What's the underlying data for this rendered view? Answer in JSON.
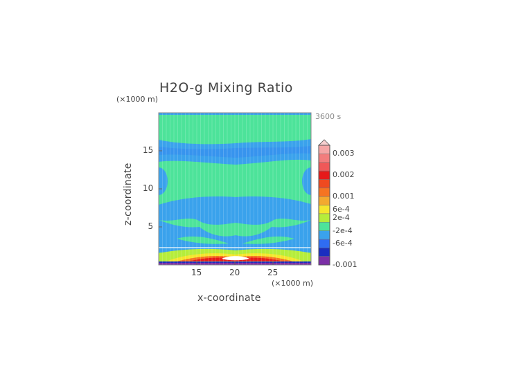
{
  "colors": {
    "bands": [
      "#7b2fa6",
      "#1a2ec0",
      "#2f6cf2",
      "#3aa2ec",
      "#4de39a",
      "#b5ed3b",
      "#f5e62d",
      "#f3a92f",
      "#f57422",
      "#ef4a20",
      "#e61a1a",
      "#f05858",
      "#f27d7d",
      "#f5a6a6"
    ]
  },
  "chart_data": {
    "type": "heatmap",
    "title": "H2O-g Mixing Ratio",
    "xlabel": "x-coordinate",
    "ylabel": "z-coordinate",
    "x_unit": "(×1000 m)",
    "y_unit": "(×1000 m)",
    "time_label": "3600 s",
    "xlim": [
      10,
      30
    ],
    "ylim": [
      0,
      20
    ],
    "x_ticks": [
      "15",
      "20",
      "25"
    ],
    "y_ticks": [
      "5",
      "10",
      "15"
    ],
    "x_tick_values": [
      15,
      20,
      25
    ],
    "y_tick_values": [
      5,
      10,
      15
    ],
    "colorbar": {
      "labels": [
        "0.003",
        "0.002",
        "0.001",
        "6e-4",
        "2e-4",
        "-2e-4",
        "-6e-4",
        "-0.001"
      ],
      "label_positions": [
        13,
        10.5,
        8,
        6.5,
        5.5,
        4,
        2.5,
        0
      ],
      "n_bands": 14,
      "range": [
        -0.001,
        0.003
      ]
    },
    "regions": [
      {
        "value": 0.0,
        "desc": "background (green)"
      },
      {
        "value": -0.0003,
        "desc": "blue bands around z≈17 and z≈7, lobes at x edges z≈11"
      },
      {
        "value": 0.0025,
        "desc": "near-surface maximum around x=20, z<1"
      },
      {
        "value": -0.001,
        "desc": "surface minimum along z=0"
      }
    ]
  }
}
